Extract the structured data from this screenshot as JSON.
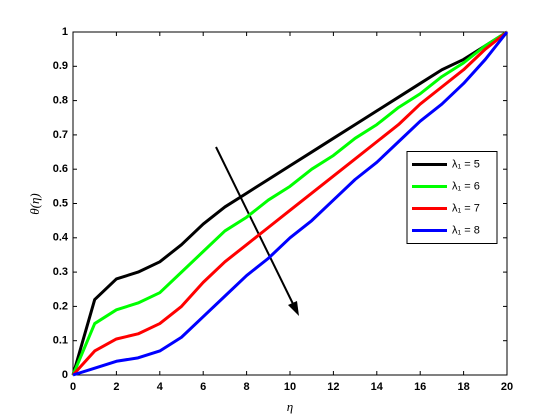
{
  "chart_data": {
    "type": "line",
    "xlabel": "η",
    "ylabel": "θ(η)",
    "x": [
      0,
      1,
      2,
      3,
      4,
      5,
      6,
      7,
      8,
      9,
      10,
      11,
      12,
      13,
      14,
      15,
      16,
      17,
      18,
      19,
      20
    ],
    "series": [
      {
        "name": "λ₁ = 5",
        "color": "#000000",
        "values": [
          0,
          0.22,
          0.28,
          0.3,
          0.33,
          0.38,
          0.44,
          0.49,
          0.53,
          0.57,
          0.61,
          0.65,
          0.69,
          0.73,
          0.77,
          0.81,
          0.85,
          0.89,
          0.92,
          0.96,
          1
        ]
      },
      {
        "name": "λ₁ = 6",
        "color": "#00ff00",
        "values": [
          0,
          0.15,
          0.19,
          0.21,
          0.24,
          0.3,
          0.36,
          0.42,
          0.46,
          0.51,
          0.55,
          0.6,
          0.64,
          0.69,
          0.73,
          0.78,
          0.82,
          0.87,
          0.91,
          0.96,
          1
        ]
      },
      {
        "name": "λ₁ = 7",
        "color": "#ff0000",
        "values": [
          0,
          0.07,
          0.105,
          0.12,
          0.15,
          0.2,
          0.27,
          0.33,
          0.38,
          0.43,
          0.48,
          0.53,
          0.58,
          0.63,
          0.68,
          0.73,
          0.79,
          0.84,
          0.89,
          0.95,
          1
        ]
      },
      {
        "name": "λ₁ = 8",
        "color": "#0000ff",
        "values": [
          0,
          0.02,
          0.04,
          0.05,
          0.07,
          0.11,
          0.17,
          0.23,
          0.29,
          0.34,
          0.4,
          0.45,
          0.51,
          0.57,
          0.62,
          0.68,
          0.74,
          0.79,
          0.85,
          0.92,
          1
        ]
      }
    ],
    "xlim": [
      0,
      20
    ],
    "xticks": [
      0,
      2,
      4,
      6,
      8,
      10,
      12,
      14,
      16,
      18,
      20
    ],
    "ylim": [
      0,
      1
    ],
    "yticks": [
      0,
      0.1,
      0.2,
      0.3,
      0.4,
      0.5,
      0.6,
      0.7,
      0.8,
      0.9,
      1
    ],
    "grid": false,
    "legend_position": "right"
  }
}
